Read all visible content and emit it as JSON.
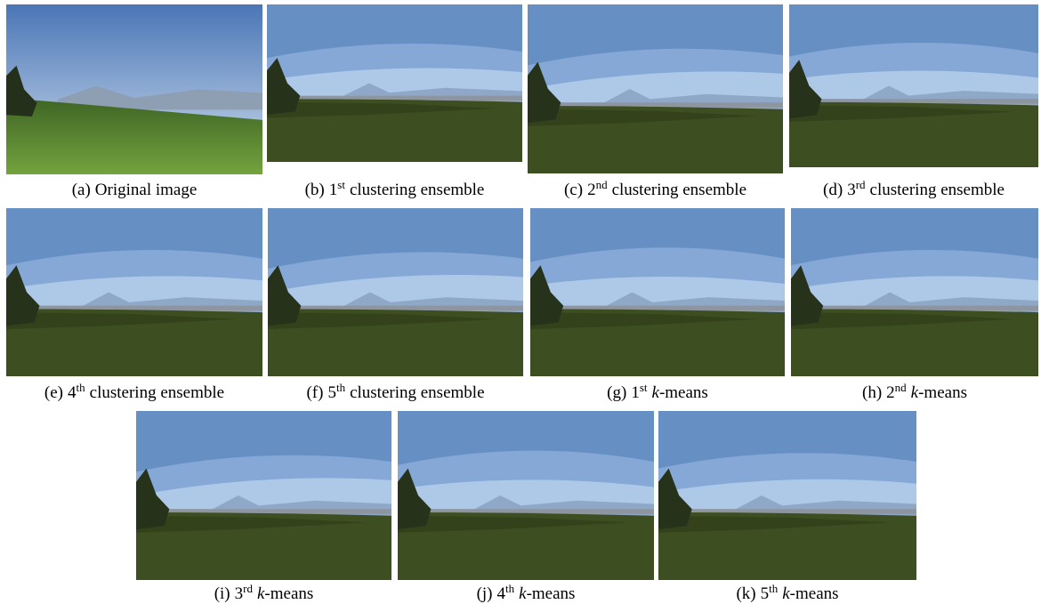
{
  "panels": [
    {
      "label": "(a)",
      "text": "Original image"
    },
    {
      "label": "(b)",
      "num": "1",
      "sup": "st",
      "text": "clustering ensemble"
    },
    {
      "label": "(c)",
      "num": "2",
      "sup": "nd",
      "text": "clustering ensemble"
    },
    {
      "label": "(d)",
      "num": "3",
      "sup": "rd",
      "text": "clustering ensemble"
    },
    {
      "label": "(e)",
      "num": "4",
      "sup": "th",
      "text": "clustering ensemble"
    },
    {
      "label": "(f)",
      "num": "5",
      "sup": "th",
      "text": "clustering ensemble"
    },
    {
      "label": "(g)",
      "num": "1",
      "sup": "st",
      "italic": "k",
      "text": "-means"
    },
    {
      "label": "(h)",
      "num": "2",
      "sup": "nd",
      "italic": "k",
      "text": "-means"
    },
    {
      "label": "(i)",
      "num": "3",
      "sup": "rd",
      "italic": "k",
      "text": "-means"
    },
    {
      "label": "(j)",
      "num": "4",
      "sup": "th",
      "italic": "k",
      "text": "-means"
    },
    {
      "label": "(k)",
      "num": "5",
      "sup": "th",
      "italic": "k",
      "text": "-means"
    }
  ]
}
